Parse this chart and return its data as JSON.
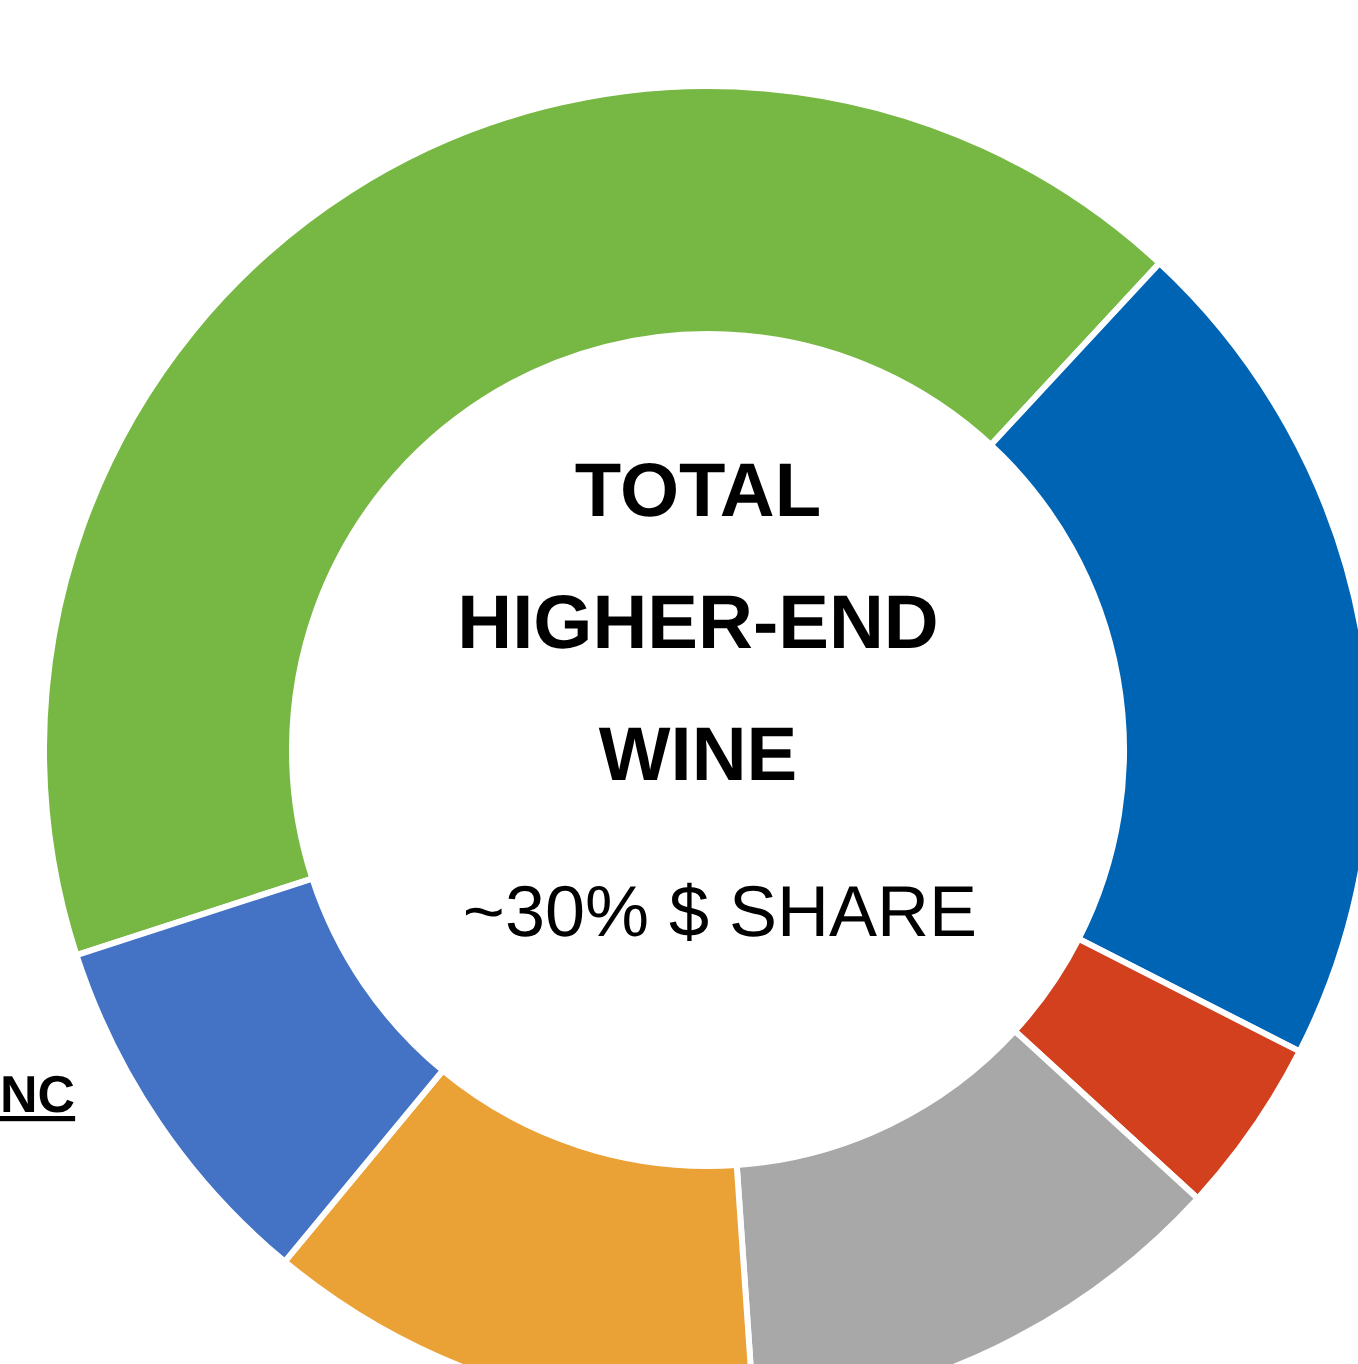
{
  "chart_data": {
    "type": "donut",
    "title": "TOTAL HIGHER-END WINE",
    "subtitle": "~30% $ SHARE",
    "annotations": [
      "NC"
    ],
    "categories": [
      null,
      null,
      null,
      null,
      null,
      null
    ],
    "values": [
      41.9,
      20.6,
      4.3,
      12.1,
      12.1,
      9.0
    ],
    "colors": [
      "#76b843",
      "#0064b4",
      "#d2401e",
      "#a8a8a8",
      "#eaa136",
      "#4472c4"
    ],
    "legend": false
  }
}
